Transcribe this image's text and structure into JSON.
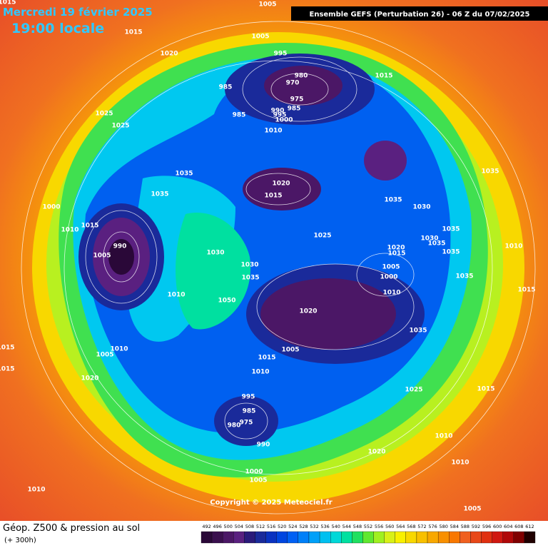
{
  "header": {
    "date": "Mercredi 19 février 2025",
    "time": "19:00 locale",
    "model": "Ensemble GEFS  (Perturbation 26)  -  06 Z du 07/02/2025"
  },
  "isobar_labels": [
    1015,
    1005,
    1015,
    1005,
    1020,
    995,
    980,
    970,
    985,
    975,
    1015,
    985,
    990,
    995,
    985,
    1000,
    1025,
    1025,
    1010,
    1035,
    1020,
    1035,
    1035,
    1015,
    1035,
    1030,
    1000,
    1015,
    1010,
    1025,
    1035,
    1030,
    1035,
    1035,
    990,
    1005,
    1030,
    1020,
    1015,
    1010,
    1030,
    1005,
    1000,
    1035,
    1035,
    1010,
    1015,
    1010,
    1050,
    1020,
    1035,
    1005,
    1010,
    1005,
    1015,
    1015,
    1015,
    1010,
    1020,
    1025,
    1015,
    995,
    985,
    980,
    975,
    1010,
    990,
    1020,
    1010,
    1000,
    1005,
    1010,
    1005
  ],
  "copyright": "Copyright © 2025 Meteociel.fr",
  "footer": {
    "title": "Géop. Z500 & pression au sol",
    "subtitle": "(+ 300h)"
  },
  "legend": {
    "values": [
      492,
      496,
      500,
      504,
      508,
      512,
      516,
      520,
      524,
      528,
      532,
      536,
      540,
      544,
      548,
      552,
      556,
      560,
      564,
      568,
      572,
      576,
      580,
      584,
      588,
      592,
      596,
      600,
      604,
      608,
      612
    ],
    "colors": [
      "#2a0838",
      "#3a0f4e",
      "#4b1766",
      "#5a2080",
      "#2a1a7a",
      "#1a2a9a",
      "#0a32c0",
      "#0046e0",
      "#0060f4",
      "#0080f8",
      "#00a0f8",
      "#00c0f0",
      "#00d8d8",
      "#00e0a0",
      "#20e060",
      "#60e830",
      "#a0f020",
      "#d8f018",
      "#f8f000",
      "#f8d800",
      "#f8c000",
      "#f8a800",
      "#f89000",
      "#f87800",
      "#f06020",
      "#e84818",
      "#e03010",
      "#d01810",
      "#b00808",
      "#800000",
      "#200000"
    ]
  }
}
